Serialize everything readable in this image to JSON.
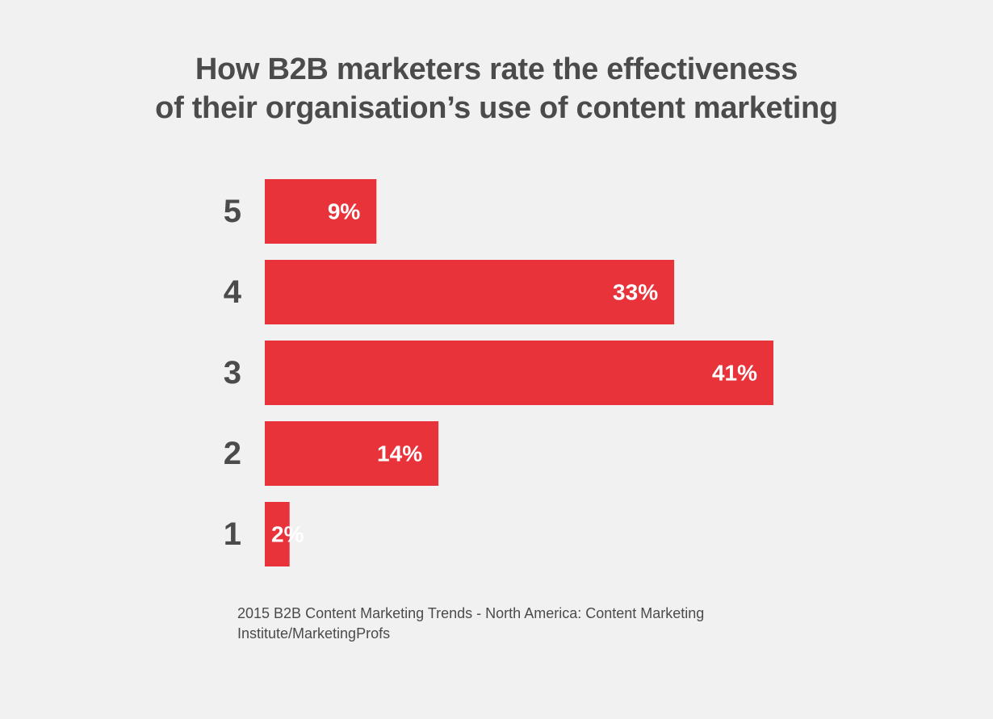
{
  "chart_data": {
    "type": "bar",
    "orientation": "horizontal",
    "title_lines": [
      "How B2B marketers rate the effectiveness",
      "of their organisation’s use of content marketing"
    ],
    "categories": [
      "5",
      "4",
      "3",
      "2",
      "1"
    ],
    "values": [
      9,
      33,
      41,
      14,
      2
    ],
    "value_labels": [
      "9%",
      "33%",
      "41%",
      "14%",
      "2%"
    ],
    "unit": "%",
    "xlim": [
      0,
      41
    ],
    "grid": false,
    "legend": "none",
    "bar_color": "#e8333b",
    "value_label_color": "#ffffff",
    "category_label_color": "#4b4b4b",
    "source": "2015 B2B Content Marketing Trends - North America: Content Marketing Institute/MarketingProfs"
  },
  "colors": {
    "background": "#f2f1f1",
    "text": "#4b4b4b",
    "bar": "#e8333b"
  }
}
